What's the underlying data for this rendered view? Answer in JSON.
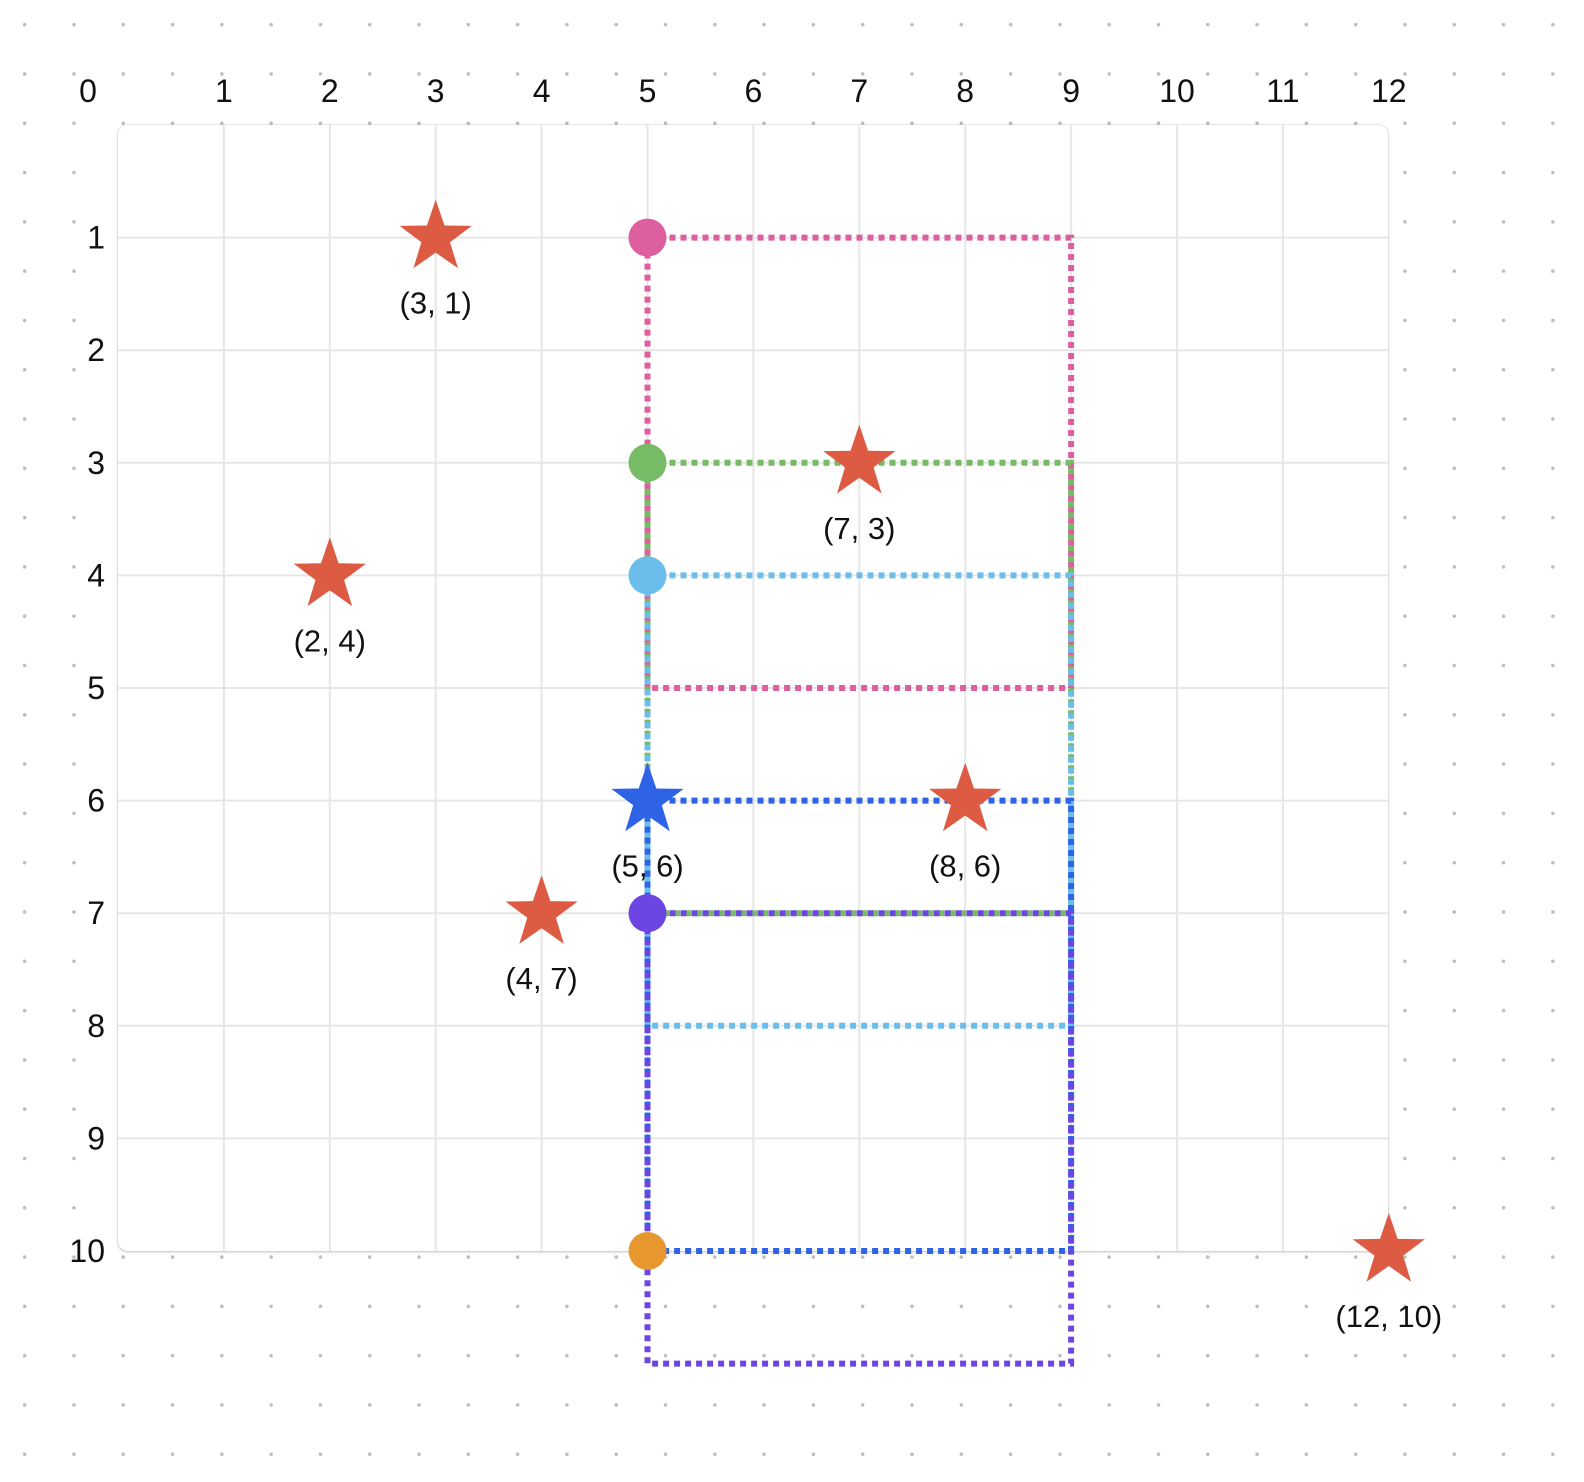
{
  "colors": {
    "grid": "#e6e6e6",
    "star": "#dd5b43",
    "pink": "#de5f9e",
    "green": "#77bb66",
    "light_blue": "#6bbdeb",
    "blue": "#2e63e6",
    "purple": "#6d45e3",
    "orange": "#e8972f"
  },
  "axes": {
    "x_ticks": [
      "0",
      "1",
      "2",
      "3",
      "4",
      "5",
      "6",
      "7",
      "8",
      "9",
      "10",
      "11",
      "12"
    ],
    "y_ticks": [
      "1",
      "2",
      "3",
      "4",
      "5",
      "6",
      "7",
      "8",
      "9",
      "10"
    ]
  },
  "stars": [
    {
      "x": 3,
      "y": 1,
      "label": "(3, 1)",
      "color": "star"
    },
    {
      "x": 7,
      "y": 3,
      "label": "(7, 3)",
      "color": "star"
    },
    {
      "x": 2,
      "y": 4,
      "label": "(2, 4)",
      "color": "star"
    },
    {
      "x": 5,
      "y": 6,
      "label": "(5, 6)",
      "color": "blue"
    },
    {
      "x": 8,
      "y": 6,
      "label": "(8, 6)",
      "color": "star"
    },
    {
      "x": 4,
      "y": 7,
      "label": "(4, 7)",
      "color": "star"
    },
    {
      "x": 12,
      "y": 10,
      "label": "(12, 10)",
      "color": "star"
    }
  ],
  "dots": [
    {
      "x": 5,
      "y": 1,
      "color": "pink"
    },
    {
      "x": 5,
      "y": 3,
      "color": "green"
    },
    {
      "x": 5,
      "y": 4,
      "color": "light_blue"
    },
    {
      "x": 5,
      "y": 7,
      "color": "purple"
    },
    {
      "x": 5,
      "y": 10,
      "color": "orange"
    }
  ],
  "rectangles": [
    {
      "color": "pink",
      "x1": 5,
      "y1": 1,
      "x2": 9,
      "y2": 5
    },
    {
      "color": "green",
      "x1": 5,
      "y1": 3,
      "x2": 9,
      "y2": 7
    },
    {
      "color": "light_blue",
      "x1": 5,
      "y1": 4,
      "x2": 9,
      "y2": 8
    },
    {
      "color": "blue",
      "x1": 5,
      "y1": 6,
      "x2": 9,
      "y2": 10
    },
    {
      "color": "purple",
      "x1": 5,
      "y1": 7,
      "x2": 9,
      "y2": 11
    }
  ]
}
